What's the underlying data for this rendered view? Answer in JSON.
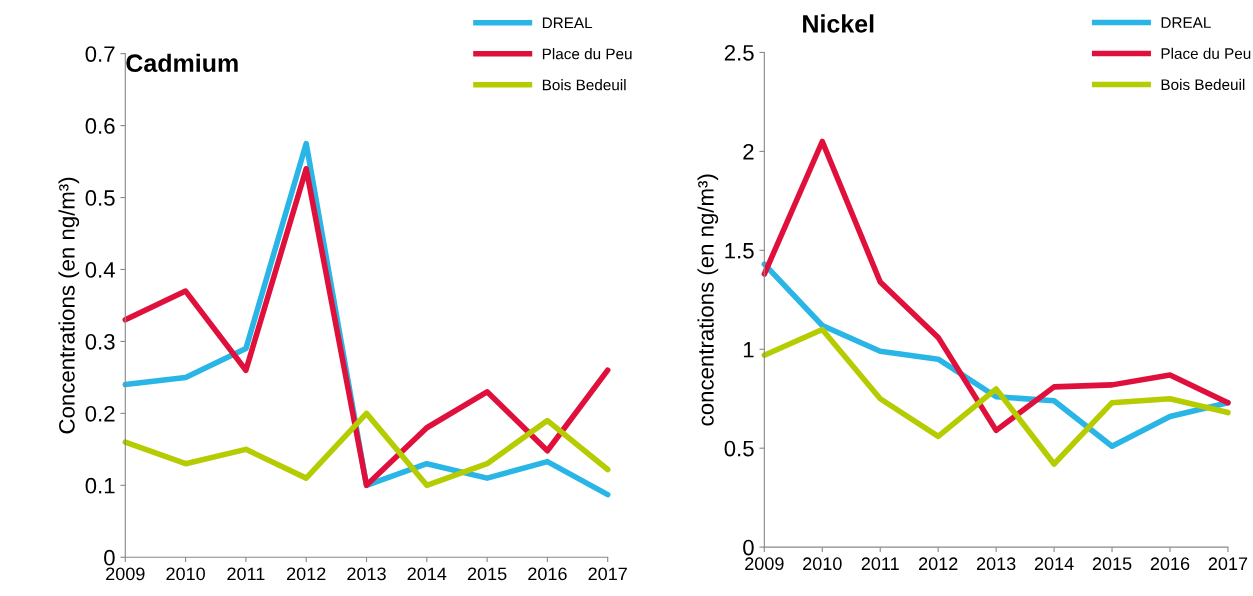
{
  "chart_data": [
    {
      "type": "line",
      "title": "Cadmium",
      "ylabel": "Concentrations (en ng/m³)",
      "x": [
        2009,
        2010,
        2011,
        2012,
        2013,
        2014,
        2015,
        2016,
        2017
      ],
      "xlim": [
        2009,
        2017
      ],
      "xticks": [
        2009,
        2010,
        2011,
        2012,
        2013,
        2014,
        2015,
        2016,
        2017
      ],
      "ylim": [
        0,
        0.7
      ],
      "yticks": [
        0,
        0.1,
        0.2,
        0.3,
        0.4,
        0.5,
        0.6,
        0.7
      ],
      "grid": false,
      "legend": "top right",
      "marker": "none",
      "line_style": "solid",
      "series": [
        {
          "name": "DREAL",
          "color": "#29b6e6",
          "values": [
            0.24,
            0.25,
            0.29,
            0.575,
            0.1,
            0.13,
            0.11,
            0.133,
            0.087
          ]
        },
        {
          "name": "Place du Peu",
          "color": "#e0103c",
          "values": [
            0.33,
            0.37,
            0.26,
            0.54,
            0.1,
            0.18,
            0.23,
            0.148,
            0.26
          ]
        },
        {
          "name": "Bois Bedeuil",
          "color": "#b5cc00",
          "values": [
            0.16,
            0.13,
            0.15,
            0.11,
            0.2,
            0.1,
            0.13,
            0.19,
            0.122
          ]
        }
      ]
    },
    {
      "type": "line",
      "title": "Nickel",
      "ylabel": "concentrations (en ng/m³)",
      "x": [
        2009,
        2010,
        2011,
        2012,
        2013,
        2014,
        2015,
        2016,
        2017
      ],
      "xlim": [
        2009,
        2017
      ],
      "xticks": [
        2009,
        2010,
        2011,
        2012,
        2013,
        2014,
        2015,
        2016,
        2017
      ],
      "ylim": [
        0,
        2.5
      ],
      "yticks": [
        0,
        0.5,
        1,
        1.5,
        2,
        2.5
      ],
      "grid": false,
      "legend": "top right",
      "marker": "none",
      "line_style": "solid",
      "series": [
        {
          "name": "DREAL",
          "color": "#29b6e6",
          "values": [
            1.43,
            1.12,
            0.99,
            0.95,
            0.76,
            0.74,
            0.51,
            0.66,
            0.73
          ]
        },
        {
          "name": "Place du Peu",
          "color": "#e0103c",
          "values": [
            1.38,
            2.05,
            1.34,
            1.06,
            0.59,
            0.81,
            0.82,
            0.87,
            0.73
          ]
        },
        {
          "name": "Bois Bedeuil",
          "color": "#b5cc00",
          "values": [
            0.97,
            1.1,
            0.75,
            0.56,
            0.8,
            0.42,
            0.73,
            0.75,
            0.68
          ]
        }
      ]
    }
  ]
}
